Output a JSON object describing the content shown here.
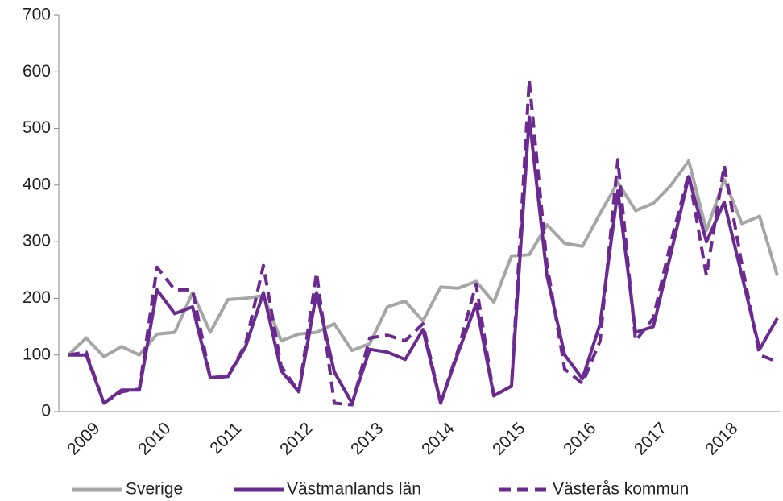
{
  "chart_data": {
    "type": "line",
    "categories": [
      null,
      "2009",
      null,
      null,
      null,
      "2010",
      null,
      null,
      null,
      "2011",
      null,
      null,
      null,
      "2012",
      null,
      null,
      null,
      "2013",
      null,
      null,
      null,
      "2014",
      null,
      null,
      null,
      "2015",
      null,
      null,
      null,
      "2016",
      null,
      null,
      null,
      "2017",
      null,
      null,
      null,
      "2018",
      null,
      null,
      null
    ],
    "series": [
      {
        "name": "Sverige",
        "color": "#a6a6a6",
        "dash": false,
        "values": [
          100,
          130,
          97,
          115,
          100,
          137,
          140,
          210,
          140,
          198,
          200,
          205,
          125,
          137,
          140,
          155,
          108,
          120,
          185,
          195,
          160,
          220,
          218,
          230,
          193,
          275,
          277,
          330,
          297,
          292,
          350,
          405,
          355,
          368,
          400,
          443,
          320,
          410,
          332,
          345,
          240
        ]
      },
      {
        "name": "Västmanlands län",
        "color": "#6b2a8f",
        "dash": false,
        "values": [
          100,
          100,
          15,
          38,
          38,
          215,
          173,
          185,
          60,
          62,
          115,
          210,
          72,
          35,
          210,
          70,
          15,
          110,
          105,
          92,
          145,
          15,
          105,
          190,
          28,
          45,
          520,
          240,
          100,
          58,
          155,
          390,
          140,
          150,
          280,
          415,
          300,
          370,
          240,
          110,
          165
        ]
      },
      {
        "name": "Västerås kommun",
        "color": "#6b2a8f",
        "dash": true,
        "values": [
          100,
          105,
          15,
          35,
          40,
          255,
          215,
          215,
          60,
          62,
          120,
          258,
          80,
          35,
          245,
          15,
          12,
          130,
          135,
          125,
          155,
          15,
          110,
          225,
          28,
          45,
          585,
          260,
          75,
          50,
          125,
          445,
          125,
          165,
          300,
          420,
          240,
          435,
          260,
          100,
          88
        ]
      }
    ],
    "ylim": [
      0,
      700
    ],
    "yticks": [
      0,
      100,
      200,
      300,
      400,
      500,
      600,
      700
    ],
    "grid": false
  }
}
